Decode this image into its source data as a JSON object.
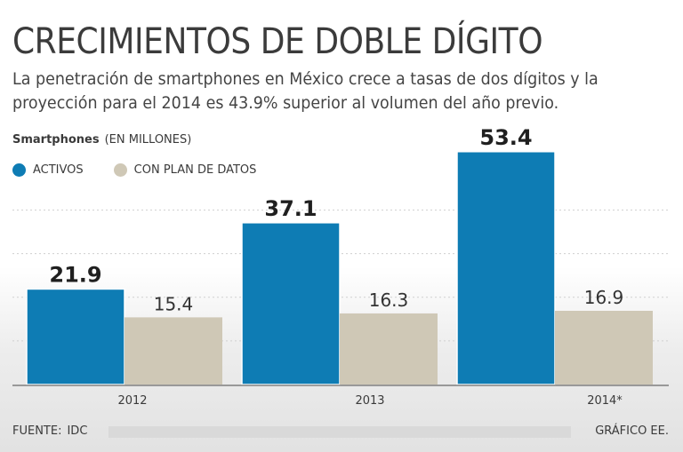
{
  "title": "CRECIMIENTOS DE DOBLE DÍGITO",
  "subtitle": "La penetración de smartphones en México crece a tasas de dos dígitos y la proyección para el 2014 es 43.9% superior al volumen del año previo.",
  "units_label": "Smartphones",
  "units_note": "(EN MILLONES)",
  "footer": {
    "source_label": "FUENTE:",
    "source_value": "IDC",
    "credit": "GRÁFICO EE."
  },
  "colors": {
    "activos": "#0e7cb4",
    "plan_datos": "#cfc8b6",
    "title": "#3b3b3b"
  },
  "chart_data": {
    "type": "bar",
    "title": "CRECIMIENTOS DE DOBLE DÍGITO",
    "xlabel": "",
    "ylabel": "Smartphones (EN MILLONES)",
    "categories": [
      "2012",
      "2013",
      "2014*"
    ],
    "series": [
      {
        "name": "ACTIVOS",
        "values": [
          21.9,
          37.1,
          53.4
        ],
        "labels": [
          "21.9",
          "37.1",
          "53.4"
        ]
      },
      {
        "name": "CON PLAN DE DATOS",
        "values": [
          15.4,
          16.3,
          16.9
        ],
        "labels": [
          "15.4",
          "16.3",
          "16.9"
        ]
      }
    ],
    "ylim": [
      0,
      56
    ],
    "grid": true,
    "legend": "top-left"
  }
}
